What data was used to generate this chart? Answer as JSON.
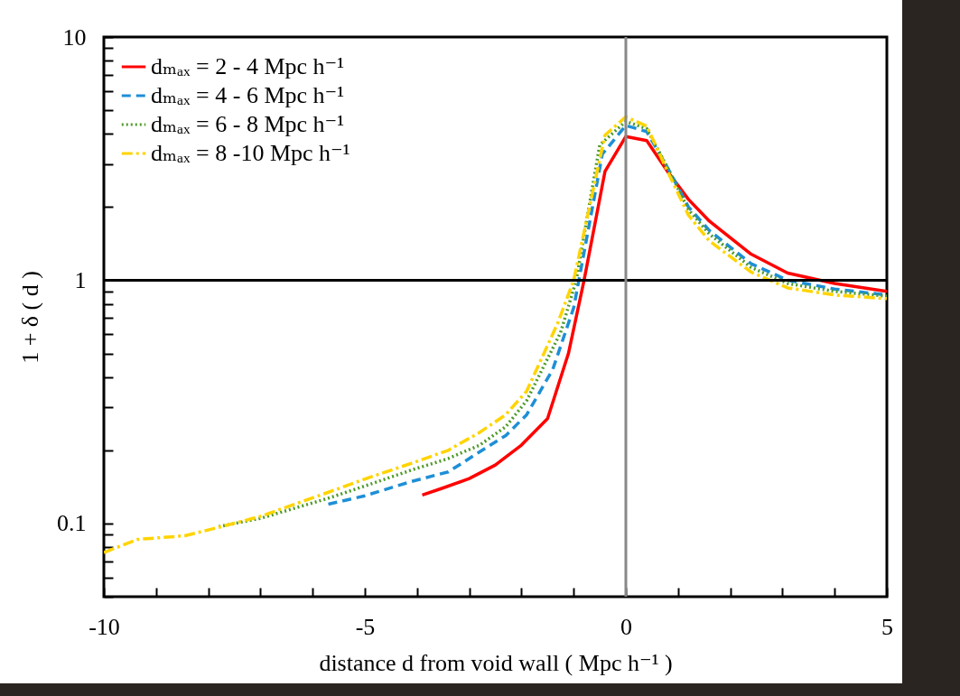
{
  "chart_data": {
    "type": "line",
    "xlabel": "distance d from void wall  ( Mpc h⁻¹ )",
    "ylabel": "1 + δ ( d )",
    "log": "y",
    "xlim": [
      -10,
      5
    ],
    "ylim": [
      0.05,
      10
    ],
    "xticks": [
      -10,
      {
        "value": -9,
        "label": null
      },
      {
        "value": -8,
        "label": null
      },
      {
        "value": -7,
        "label": null
      },
      {
        "value": -6,
        "label": null
      },
      -5,
      {
        "value": -4,
        "label": null
      },
      {
        "value": -3,
        "label": null
      },
      {
        "value": -2,
        "label": null
      },
      {
        "value": -1,
        "label": null
      },
      0,
      {
        "value": 1,
        "label": null
      },
      {
        "value": 2,
        "label": null
      },
      {
        "value": 3,
        "label": null
      },
      {
        "value": 4,
        "label": null
      },
      5
    ],
    "yticks": [
      {
        "value": 0.05,
        "label": null
      },
      {
        "value": 0.06,
        "label": null
      },
      {
        "value": 0.07,
        "label": null
      },
      {
        "value": 0.08,
        "label": null
      },
      {
        "value": 0.09,
        "label": null
      },
      0.1,
      {
        "value": 0.2,
        "label": null
      },
      {
        "value": 0.3,
        "label": null
      },
      {
        "value": 0.4,
        "label": null
      },
      {
        "value": 0.5,
        "label": null
      },
      {
        "value": 0.6,
        "label": null
      },
      {
        "value": 0.7,
        "label": null
      },
      {
        "value": 0.8,
        "label": null
      },
      {
        "value": 0.9,
        "label": null
      },
      1,
      {
        "value": 2,
        "label": null
      },
      {
        "value": 3,
        "label": null
      },
      {
        "value": 4,
        "label": null
      },
      {
        "value": 5,
        "label": null
      },
      {
        "value": 6,
        "label": null
      },
      {
        "value": 7,
        "label": null
      },
      {
        "value": 8,
        "label": null
      },
      {
        "value": 9,
        "label": null
      },
      10
    ],
    "grid": false,
    "legend": "top left",
    "ref_lines": [
      {
        "axis": "y",
        "value": 1,
        "color": "#000000"
      },
      {
        "axis": "x",
        "value": 0,
        "color": "#888888"
      }
    ],
    "series": [
      {
        "name": "dₘₐₓ = 2 - 4 Mpc h⁻¹",
        "color": "#ff0000",
        "line_style": "solid",
        "x": [
          -3.9,
          -3.5,
          -3.0,
          -2.5,
          -2.0,
          -1.5,
          -1.1,
          -0.8,
          -0.4,
          0,
          0.4,
          0.8,
          1.2,
          1.6,
          2.4,
          3.1,
          4,
          5
        ],
        "values": [
          0.131,
          0.14,
          0.153,
          0.174,
          0.21,
          0.27,
          0.5,
          1.0,
          2.8,
          3.9,
          3.75,
          2.8,
          2.15,
          1.75,
          1.28,
          1.07,
          0.97,
          0.9
        ]
      },
      {
        "name": "dₘₐₓ = 4 - 6 Mpc h⁻¹",
        "color": "#1e8fd6",
        "line_style": "dashed",
        "x": [
          -5.7,
          -5,
          -4.1,
          -3.4,
          -2.8,
          -2.3,
          -1.9,
          -1.4,
          -1.0,
          -0.9,
          -0.45,
          0,
          0.4,
          0.8,
          1.2,
          1.6,
          2.4,
          3.1,
          4,
          5
        ],
        "values": [
          0.12,
          0.13,
          0.149,
          0.163,
          0.197,
          0.23,
          0.28,
          0.43,
          0.77,
          1,
          3.3,
          4.33,
          4.08,
          2.9,
          2.0,
          1.6,
          1.17,
          1.0,
          0.92,
          0.87
        ]
      },
      {
        "name": "dₘₐₓ = 6 - 8 Mpc h⁻¹",
        "color": "#4e9a28",
        "line_style": "dotted",
        "x": [
          -7.8,
          -7,
          -5.7,
          -4.9,
          -4.1,
          -3.4,
          -2.8,
          -2.3,
          -1.9,
          -1.25,
          -0.95,
          -0.5,
          0,
          0.4,
          0.8,
          1.2,
          1.6,
          2.4,
          3.1,
          4,
          5
        ],
        "values": [
          0.097,
          0.105,
          0.127,
          0.145,
          0.166,
          0.185,
          0.21,
          0.25,
          0.32,
          0.61,
          1,
          3.6,
          4.5,
          4.2,
          2.9,
          1.95,
          1.55,
          1.13,
          0.97,
          0.9,
          0.86
        ]
      },
      {
        "name": "dₘₐₓ = 8 -10 Mpc h⁻¹",
        "color": "#ffd400",
        "line_style": "dashdot",
        "x": [
          -10,
          -9.35,
          -8.45,
          -7.75,
          -7,
          -5.8,
          -4.9,
          -4.1,
          -3.4,
          -2.8,
          -2.3,
          -1.9,
          -1.3,
          -1.0,
          -0.4,
          0,
          0.4,
          0.8,
          1.2,
          1.6,
          2.4,
          3.1,
          4,
          5
        ],
        "values": [
          0.076,
          0.086,
          0.089,
          0.097,
          0.107,
          0.132,
          0.155,
          0.177,
          0.2,
          0.237,
          0.28,
          0.35,
          0.67,
          1.0,
          3.95,
          4.7,
          4.3,
          2.8,
          1.85,
          1.45,
          1.08,
          0.93,
          0.87,
          0.84
        ]
      }
    ]
  }
}
